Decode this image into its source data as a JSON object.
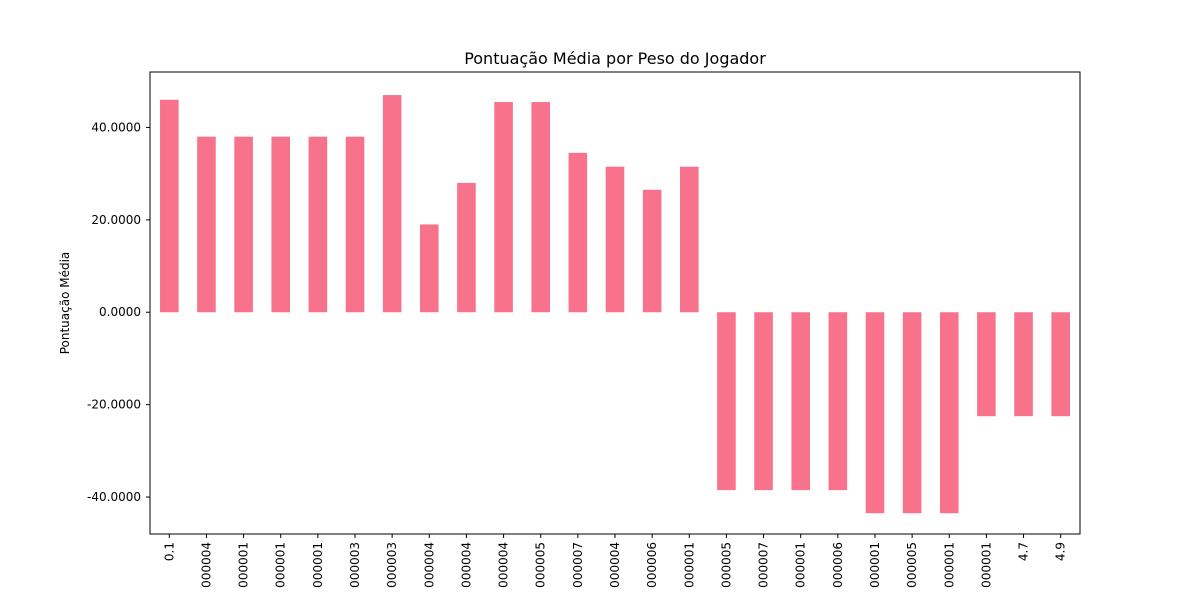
{
  "chart_data": {
    "type": "bar",
    "title": "Pontuação Média por Peso do Jogador",
    "xlabel": "",
    "ylabel": "Pontuação Média",
    "ylim": [
      -48,
      52
    ],
    "yticks": [
      -40,
      -20,
      0,
      20,
      40
    ],
    "ytick_labels": [
      "-40.0000",
      "-20.0000",
      "0.0000",
      "20.0000",
      "40.0000"
    ],
    "categories": [
      "0.1",
      "000004",
      "000001",
      "000001",
      "000001",
      "000003",
      "000003",
      "000004",
      "000004",
      "000004",
      "000005",
      "000007",
      "000004",
      "000006",
      "000001",
      "000005",
      "000007",
      "000001",
      "000006",
      "000001",
      "000005",
      "000001",
      "000001",
      "4.7",
      "4.9"
    ],
    "values": [
      46,
      38,
      38,
      38,
      38,
      38,
      47,
      19,
      28,
      45.5,
      45.5,
      34.5,
      31.5,
      26.5,
      31.5,
      -38.5,
      -38.5,
      -38.5,
      -38.5,
      -43.5,
      -43.5,
      -43.5,
      -22.5,
      -22.5,
      -22.5
    ],
    "bar_color": "#f7728a",
    "grid": false
  }
}
